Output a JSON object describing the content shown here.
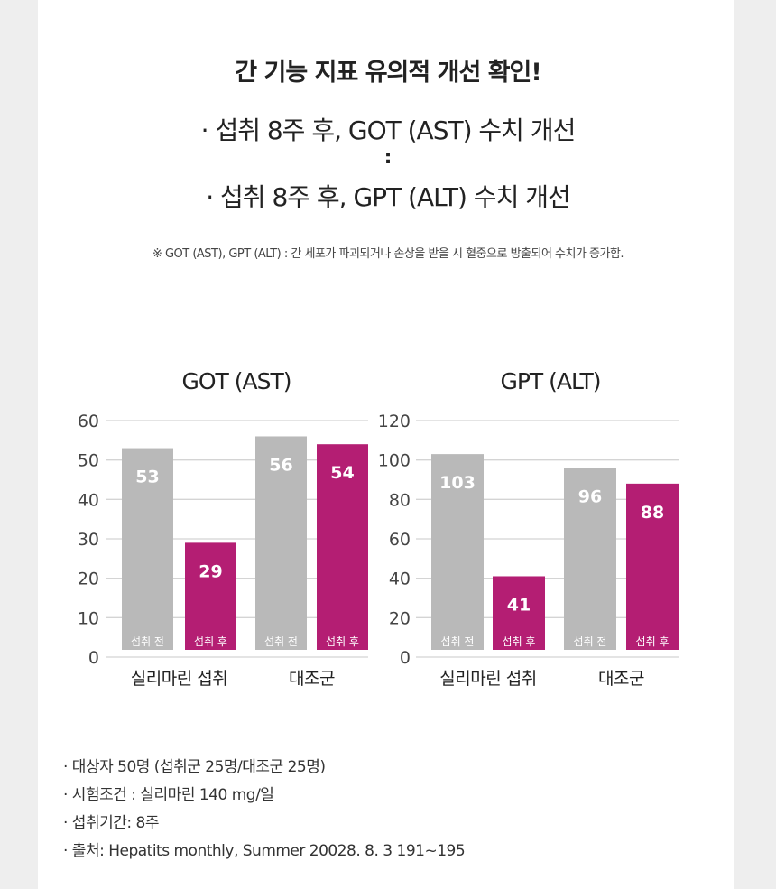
{
  "header": {
    "title": "간 기능 지표 유의적 개선 확인!",
    "line1": "· 섭취 8주 후, GOT (AST) 수치 개선",
    "separator": ":",
    "line2": "· 섭취 8주 후,  GPT (ALT) 수치 개선",
    "footnote": "※ GOT (AST), GPT (ALT) : 간 세포가 파괴되거나 손상을 받을 시 혈중으로 방출되어 수치가 증가함."
  },
  "chart_data": [
    {
      "type": "bar",
      "title": "GOT (AST)",
      "groups": [
        "실리마린 섭취",
        "대조군"
      ],
      "bar_labels": [
        "섭취 전",
        "섭취 후"
      ],
      "series": [
        {
          "name": "섭취 전",
          "color": "#b9b9b9",
          "values": [
            53,
            56
          ]
        },
        {
          "name": "섭취 후",
          "color": "#b41e73",
          "values": [
            29,
            54
          ]
        }
      ],
      "ylim": [
        0,
        60
      ],
      "yticks": [
        0,
        10,
        20,
        30,
        40,
        50,
        60
      ],
      "grid": true
    },
    {
      "type": "bar",
      "title": "GPT (ALT)",
      "groups": [
        "실리마린 섭취",
        "대조군"
      ],
      "bar_labels": [
        "섭취 전",
        "섭취 후"
      ],
      "series": [
        {
          "name": "섭취 전",
          "color": "#b9b9b9",
          "values": [
            103,
            96
          ]
        },
        {
          "name": "섭취 후",
          "color": "#b41e73",
          "values": [
            41,
            88
          ]
        }
      ],
      "ylim": [
        0,
        120
      ],
      "yticks": [
        0,
        20,
        40,
        60,
        80,
        100,
        120
      ],
      "grid": true
    }
  ],
  "notes": [
    "· 대상자 50명 (섭취군 25명/대조군 25명)",
    "· 시험조건 : 실리마린 140 mg/일",
    "· 섭취기간: 8주",
    "· 출처: Hepatits monthly, Summer 20028. 8. 3 191~195"
  ]
}
